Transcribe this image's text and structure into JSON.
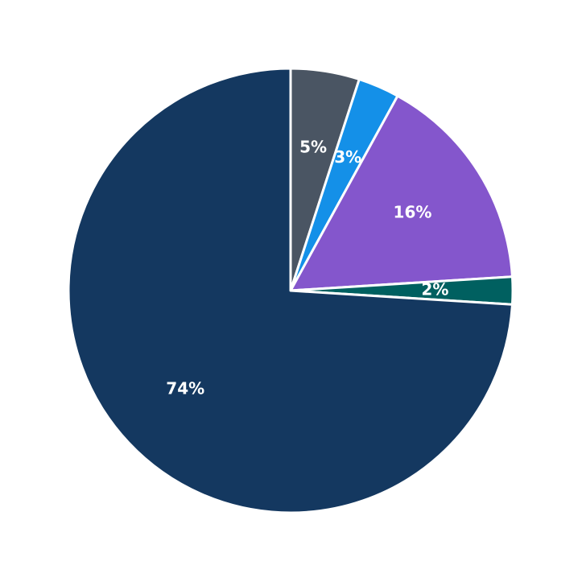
{
  "chart_data": {
    "type": "pie",
    "values": [
      5,
      3,
      16,
      2,
      74
    ],
    "value_labels": [
      "5%",
      "3%",
      "16%",
      "2%",
      "74%"
    ],
    "colors": [
      "#4a5563",
      "#1490e8",
      "#8456cc",
      "#006060",
      "#143860"
    ],
    "start_angle": 90,
    "direction": "clockwise"
  }
}
